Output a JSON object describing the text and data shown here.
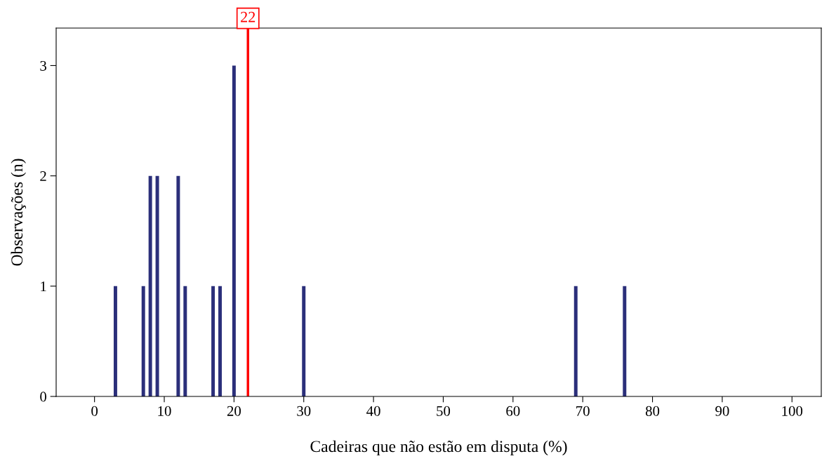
{
  "chart_data": {
    "type": "bar",
    "xlabel": "Cadeiras que não estão em disputa (%)",
    "ylabel": "Observações (n)",
    "x": [
      3,
      7,
      8,
      9,
      12,
      13,
      17,
      18,
      20,
      30,
      69,
      76
    ],
    "values": [
      1,
      1,
      2,
      2,
      2,
      1,
      1,
      1,
      3,
      1,
      1,
      1
    ],
    "color": "#2b2f7a",
    "xlim": [
      -5.5,
      104.2
    ],
    "xticks": [
      0,
      10,
      20,
      30,
      40,
      50,
      60,
      70,
      80,
      90,
      100
    ],
    "ylim": [
      0,
      3.34
    ],
    "yticks": [
      0,
      1,
      2,
      3
    ],
    "ref_lines": [
      {
        "axis": "x",
        "value": 22,
        "label": "22",
        "color": "#ff0000",
        "line_style": "solid"
      }
    ],
    "grid": false,
    "legend": false
  }
}
